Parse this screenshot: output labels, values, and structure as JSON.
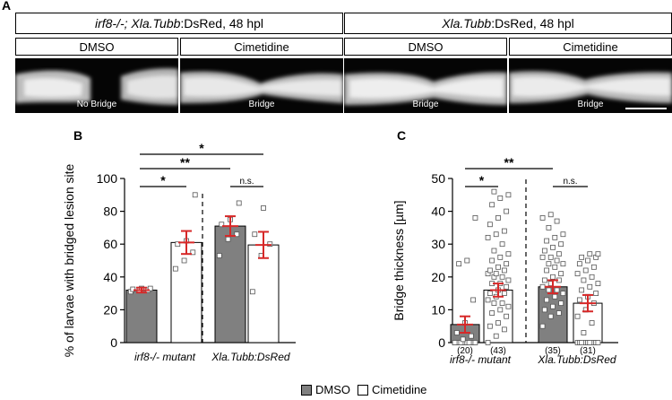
{
  "panel_labels": {
    "a": "A",
    "b": "B",
    "c": "C"
  },
  "panel_a": {
    "group_left": {
      "prefix_italic": "irf8-/-; Xla.Tubb",
      "suffix": ":DsRed, 48 hpl"
    },
    "group_right": {
      "prefix_italic": "Xla.Tubb",
      "suffix": ":DsRed, 48 hpl"
    },
    "treatments": [
      "DMSO",
      "Cimetidine",
      "DMSO",
      "Cimetidine"
    ],
    "image_labels": [
      "No Bridge",
      "Bridge",
      "Bridge",
      "Bridge"
    ]
  },
  "legend": {
    "dmso": "DMSO",
    "cimetidine": "Cimetidine",
    "dmso_color": "#808080",
    "cimetidine_color": "#ffffff"
  },
  "chart_data": [
    {
      "type": "bar",
      "panel": "B",
      "ylabel": "% of larvae with bridged lesion site",
      "ylim": [
        0,
        100
      ],
      "yticks": [
        0,
        20,
        40,
        60,
        80,
        100
      ],
      "group_labels": [
        "irf8-/- mutant",
        "Xla.Tubb:DsRed"
      ],
      "series": [
        {
          "name": "DMSO",
          "color": "#808080",
          "values": [
            32,
            71
          ],
          "errors": [
            1.5,
            6
          ]
        },
        {
          "name": "Cimetidine",
          "color": "#ffffff",
          "values": [
            61,
            59.5
          ],
          "errors": [
            7,
            8
          ]
        }
      ],
      "points": [
        [
          31,
          32,
          32,
          32.5,
          33,
          33
        ],
        [
          45,
          50,
          55,
          60,
          62,
          90
        ],
        [
          53,
          63,
          66,
          72,
          75,
          85
        ],
        [
          31,
          53,
          60,
          66,
          82
        ]
      ],
      "significance": [
        {
          "label": "*"
        },
        {
          "label": "**"
        },
        {
          "label": "*"
        },
        {
          "label": "n.s."
        }
      ],
      "error_bar_color": "#d62828"
    },
    {
      "type": "bar",
      "panel": "C",
      "ylabel": "Bridge thickness [µm]",
      "ylim": [
        0,
        50
      ],
      "yticks": [
        0,
        10,
        20,
        30,
        40,
        50
      ],
      "group_labels": [
        "irf8-/- mutant",
        "Xla.Tubb:DsRed"
      ],
      "n_labels": [
        "(20)",
        "(43)",
        "(35)",
        "(31)"
      ],
      "series": [
        {
          "name": "DMSO",
          "color": "#808080",
          "values": [
            5.5,
            17
          ],
          "errors": [
            2.5,
            2
          ]
        },
        {
          "name": "Cimetidine",
          "color": "#ffffff",
          "values": [
            16,
            12
          ],
          "errors": [
            2,
            2.5
          ]
        }
      ],
      "points": [
        [
          0,
          0,
          0,
          0,
          0,
          0,
          0,
          0,
          0,
          0,
          0,
          0,
          1,
          2,
          3,
          6,
          13,
          24,
          25,
          38
        ],
        [
          0,
          2,
          4,
          5,
          6,
          8,
          9,
          10,
          11,
          12,
          12,
          13,
          14,
          15,
          15,
          16,
          17,
          18,
          18,
          19,
          20,
          20,
          21,
          21,
          22,
          22,
          23,
          24,
          25,
          26,
          27,
          28,
          30,
          32,
          33,
          34,
          36,
          38,
          40,
          42,
          44,
          45,
          46
        ],
        [
          5,
          8,
          9,
          10,
          11,
          12,
          13,
          14,
          15,
          16,
          16,
          17,
          18,
          19,
          19,
          20,
          21,
          22,
          23,
          24,
          24,
          25,
          26,
          26,
          27,
          28,
          29,
          30,
          31,
          32,
          33,
          35,
          37,
          38,
          39
        ],
        [
          0,
          0,
          0,
          0,
          0,
          0,
          0,
          0,
          0,
          3,
          6,
          8,
          10,
          12,
          13,
          14,
          15,
          16,
          17,
          18,
          19,
          20,
          21,
          22,
          23,
          24,
          25,
          26,
          26,
          27,
          27
        ]
      ],
      "significance": [
        {
          "label": "*"
        },
        {
          "label": "**"
        },
        {
          "label": "n.s."
        }
      ],
      "error_bar_color": "#d62828"
    }
  ]
}
